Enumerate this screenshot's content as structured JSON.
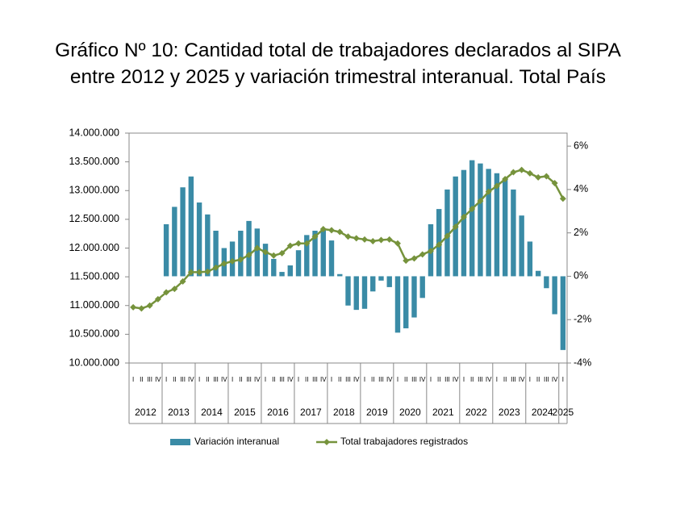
{
  "chart_data": {
    "type": "combo",
    "title": "Gráfico Nº 10: Cantidad total de trabajadores declarados al SIPA entre 2012 y 2025 y variación trimestral interanual. Total País",
    "categories": [
      "I",
      "II",
      "III",
      "IV",
      "I",
      "II",
      "III",
      "IV",
      "I",
      "II",
      "III",
      "IV",
      "I",
      "II",
      "III",
      "IV",
      "I",
      "II",
      "III",
      "IV",
      "I",
      "II",
      "III",
      "IV",
      "I",
      "II",
      "III",
      "IV",
      "I",
      "II",
      "III",
      "IV",
      "I",
      "II",
      "III",
      "IV",
      "I",
      "II",
      "III",
      "IV",
      "I",
      "II",
      "III",
      "IV",
      "I",
      "II",
      "III",
      "IV",
      "I",
      "II",
      "III",
      "IV",
      "I"
    ],
    "x_groups": [
      "2012",
      "2013",
      "2014",
      "2015",
      "2016",
      "2017",
      "2018",
      "2019",
      "2020",
      "2021",
      "2022",
      "2023",
      "2024",
      "2025"
    ],
    "series": [
      {
        "name": "Variación interanual",
        "type": "bar",
        "axis": "y2",
        "color": "#3a8ba6",
        "values": [
          null,
          null,
          null,
          null,
          2.4,
          3.2,
          4.1,
          4.6,
          3.4,
          2.85,
          2.1,
          1.3,
          1.6,
          2.1,
          2.55,
          2.2,
          1.5,
          0.8,
          0.2,
          0.5,
          1.2,
          1.9,
          2.1,
          2.2,
          1.65,
          0.1,
          -1.35,
          -1.55,
          -1.5,
          -0.7,
          -0.2,
          -0.5,
          -2.6,
          -2.4,
          -1.9,
          -1.0,
          2.4,
          3.1,
          4.0,
          4.6,
          4.9,
          5.35,
          5.2,
          4.95,
          4.75,
          4.5,
          4.0,
          2.8,
          1.6,
          0.25,
          -0.55,
          -1.75,
          -3.4
        ]
      },
      {
        "name": "Total trabajadores registrados",
        "type": "line",
        "color": "#76933c",
        "values": [
          10970000,
          10950000,
          11000000,
          11110000,
          11230000,
          11290000,
          11420000,
          11580000,
          11580000,
          11590000,
          11660000,
          11730000,
          11770000,
          11800000,
          11880000,
          12000000,
          11930000,
          11870000,
          11910000,
          12040000,
          12080000,
          12080000,
          12200000,
          12330000,
          12310000,
          12280000,
          12200000,
          12170000,
          12150000,
          12120000,
          12140000,
          12150000,
          12080000,
          11780000,
          11820000,
          11890000,
          11950000,
          12060000,
          12210000,
          12370000,
          12540000,
          12680000,
          12820000,
          12980000,
          13080000,
          13200000,
          13320000,
          13360000,
          13300000,
          13230000,
          13250000,
          13130000,
          12860000
        ]
      }
    ],
    "ylim": [
      10000000,
      14000000
    ],
    "yticks": [
      {
        "value": 10000000,
        "label": "10.000.000"
      },
      {
        "value": 10500000,
        "label": "10.500.000"
      },
      {
        "value": 11000000,
        "label": "11.000.000"
      },
      {
        "value": 11500000,
        "label": "11.500.000"
      },
      {
        "value": 12000000,
        "label": "12.000.000"
      },
      {
        "value": 12500000,
        "label": "12.500.000"
      },
      {
        "value": 13000000,
        "label": "13.000.000"
      },
      {
        "value": 13500000,
        "label": "13.500.000"
      },
      {
        "value": 14000000,
        "label": "14.000.000"
      }
    ],
    "y2lim": [
      -4,
      6.6
    ],
    "y2ticks": [
      {
        "value": -4,
        "label": "-4%"
      },
      {
        "value": -2,
        "label": "-2%"
      },
      {
        "value": 0,
        "label": "0%"
      },
      {
        "value": 2,
        "label": "2%"
      },
      {
        "value": 4,
        "label": "4%"
      },
      {
        "value": 6,
        "label": "6%"
      }
    ],
    "grid": false,
    "legend": "bottom"
  }
}
